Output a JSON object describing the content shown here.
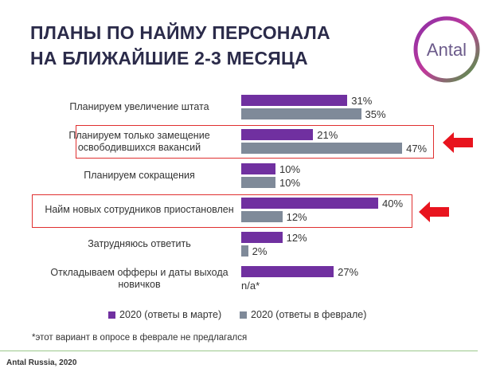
{
  "title_lines": [
    "ПЛАНЫ ПО НАЙМУ ПЕРСОНАЛА",
    "НА БЛИЖАЙШИЕ 2-3 МЕСЯЦА"
  ],
  "logo": "Antal",
  "chart_data": {
    "type": "bar",
    "orientation": "horizontal",
    "categories": [
      "Планируем увеличение штата",
      "Планируем только замещение освободившихся вакансий",
      "Планируем сокращения",
      "Найм новых сотрудников приостановлен",
      "Затрудняюсь ответить",
      "Откладываем офферы и даты выхода новичков"
    ],
    "series": [
      {
        "name": "2020 (ответы в марте)",
        "color": "#7030a0",
        "values": [
          31,
          21,
          10,
          40,
          12,
          27
        ],
        "value_labels": [
          "31%",
          "21%",
          "10%",
          "40%",
          "12%",
          "27%"
        ]
      },
      {
        "name": "2020 (ответы в феврале)",
        "color": "#7f8a99",
        "values": [
          35,
          47,
          10,
          12,
          2,
          null
        ],
        "value_labels": [
          "35%",
          "47%",
          "10%",
          "12%",
          "2%",
          "n/a*"
        ]
      }
    ]
  },
  "footnote": "*этот вариант в опросе в феврале не предлагался",
  "source": "Antal Russia, 2020"
}
